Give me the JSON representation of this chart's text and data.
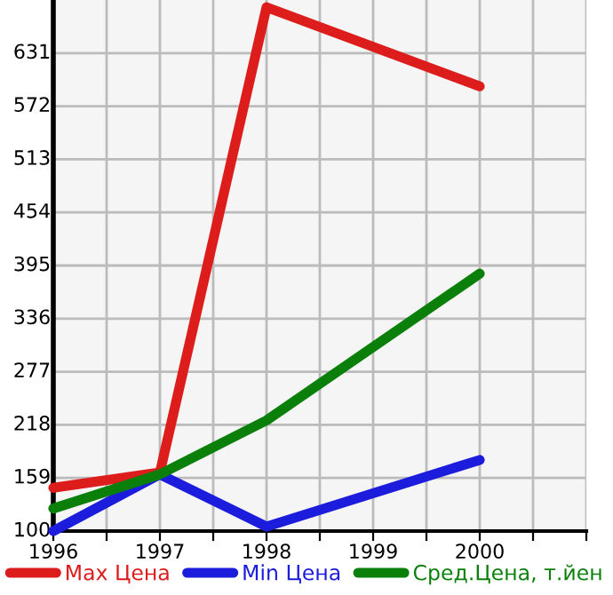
{
  "chart_data": {
    "type": "line",
    "x": [
      1996,
      1997,
      1998,
      2000
    ],
    "series": [
      {
        "name": "Max Цена",
        "color": "#dd1c1c",
        "values": [
          148,
          165,
          682,
          594
        ]
      },
      {
        "name": "Min Цена",
        "color": "#1c1cdd",
        "values": [
          100,
          163,
          105,
          179
        ]
      },
      {
        "name": "Сред.Цена, т.йен",
        "color": "#0a800a",
        "values": [
          125,
          163,
          223,
          386
        ]
      }
    ],
    "xlim": [
      1996,
      2001
    ],
    "xticks": [
      1996,
      {
        "value": 1996.5,
        "label": null
      },
      1997,
      {
        "value": 1997.5,
        "label": null
      },
      1998,
      {
        "value": 1998.5,
        "label": null
      },
      1999,
      {
        "value": 1999.5,
        "label": null
      },
      2000,
      {
        "value": 2000.5,
        "label": null
      },
      {
        "value": 2001,
        "label": null
      }
    ],
    "ylim": [
      100,
      690
    ],
    "yticks": [
      100,
      159,
      218,
      277,
      336,
      395,
      454,
      513,
      572,
      631
    ],
    "grid": true,
    "legend": "bottom",
    "marker": "none",
    "line_style": "solid"
  }
}
